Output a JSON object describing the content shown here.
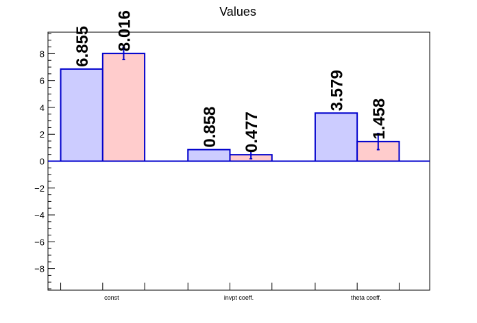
{
  "chart_data": {
    "type": "bar",
    "title": "Values",
    "categories": [
      "const",
      "invpt coeff.",
      "theta coeff."
    ],
    "series": [
      {
        "values": [
          6.855,
          0.858,
          3.579
        ],
        "errors": [
          null,
          null,
          null
        ],
        "fill": "#ccccff",
        "stroke": "#0000cc"
      },
      {
        "values": [
          8.016,
          0.477,
          1.458
        ],
        "errors": [
          0.45,
          0.3,
          0.6
        ],
        "fill": "#ffcccc",
        "stroke": "#0000cc"
      }
    ],
    "data_labels": [
      [
        "6.855",
        "0.858",
        "3.579"
      ],
      [
        "8.016",
        "0.477",
        "1.458"
      ]
    ],
    "ylim": [
      -9.6,
      9.6
    ],
    "yticks": [
      -8,
      -6,
      -4,
      -2,
      0,
      2,
      4,
      6,
      8
    ],
    "ytick_labels": [
      "−8",
      "−6",
      "−4",
      "−2",
      "0",
      "2",
      "4",
      "6",
      "8"
    ],
    "xlabel": "",
    "ylabel": "",
    "grid": false,
    "legend": "none",
    "axis_color": "#000000",
    "zero_line_color": "#0000cc"
  }
}
